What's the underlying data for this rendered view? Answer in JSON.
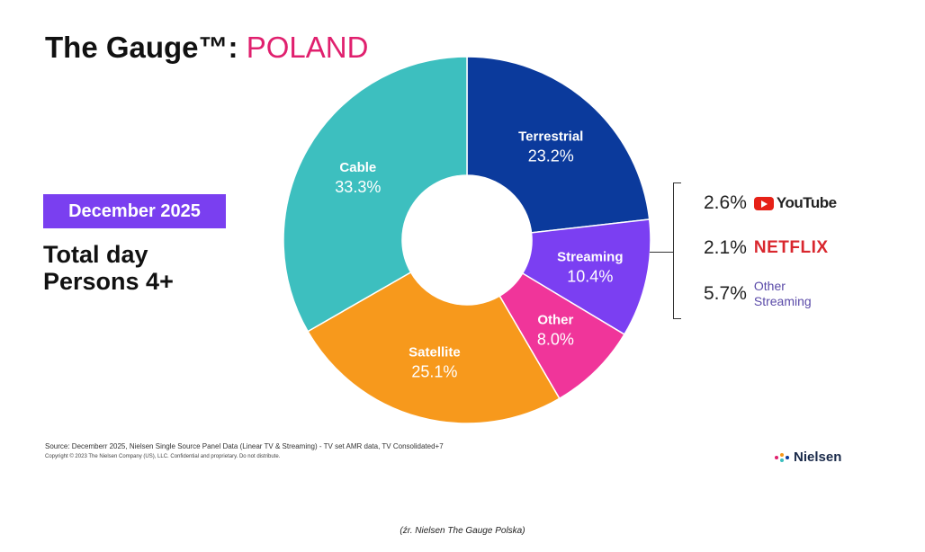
{
  "header": {
    "title": "The Gauge™:",
    "country": "POLAND"
  },
  "period": "December 2025",
  "audience": {
    "line1": "Total day",
    "line2": "Persons 4+"
  },
  "chart_data": {
    "type": "pie",
    "subtype": "donut",
    "title": "The Gauge™: POLAND",
    "categories": [
      "Terrestrial",
      "Streaming",
      "Other",
      "Satellite",
      "Cable"
    ],
    "values": [
      23.2,
      10.4,
      8.0,
      25.1,
      33.3
    ],
    "labels": [
      "23.2%",
      "10.4%",
      "8.0%",
      "25.1%",
      "33.3%"
    ],
    "colors": [
      "#0b3a9c",
      "#7b3ff2",
      "#f0359a",
      "#f7991c",
      "#3dbfbf"
    ],
    "streaming_breakdown": [
      {
        "name": "YouTube",
        "value": 2.6,
        "label": "2.6%"
      },
      {
        "name": "NETFLIX",
        "value": 2.1,
        "label": "2.1%"
      },
      {
        "name": "Other Streaming",
        "value": 5.7,
        "label": "5.7%"
      }
    ]
  },
  "breakdown_labels": {
    "youtube": "YouTube",
    "netflix": "NETFLIX",
    "other1": "Other",
    "other2": "Streaming"
  },
  "source": "Source: Decemberr 2025, Nielsen Single Source Panel Data (Linear TV & Streaming) - TV set AMR data, TV Consolidated+7",
  "copyright": "Copyright © 2023 The Nielsen Company (US), LLC. Confidential and proprietary. Do not distribute.",
  "logo": "Nielsen",
  "caption": "(źr. Nielsen The Gauge Polska)"
}
